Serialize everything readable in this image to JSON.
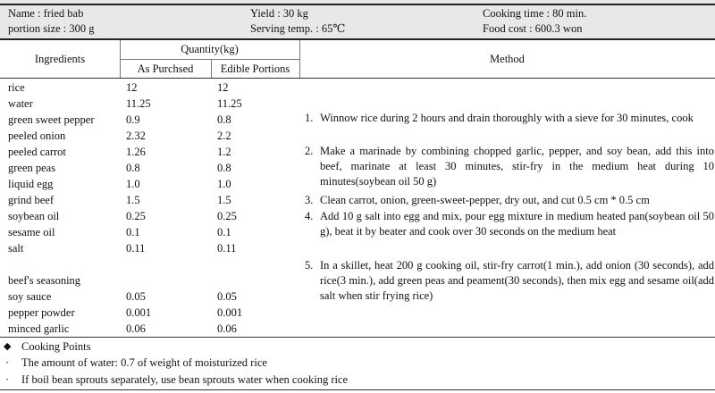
{
  "header": {
    "name": "Name : fried bab",
    "yield": "Yield : 30 kg",
    "cooking_time": "Cooking time : 80 min.",
    "portion_size": "portion size : 300 g",
    "serving_temp": "Serving temp. : 65℃",
    "food_cost": "Food cost : 600.3 won"
  },
  "table": {
    "col_ingredients": "Ingredients",
    "col_quantity": "Quantity(kg)",
    "col_as_purchased": "As Purchsed",
    "col_edible": "Edible Portions",
    "col_method": "Method"
  },
  "ingredients": [
    {
      "name": "rice",
      "ap": "12",
      "ep": "12"
    },
    {
      "name": "water",
      "ap": "11.25",
      "ep": "11.25"
    },
    {
      "name": "green sweet pepper",
      "ap": "0.9",
      "ep": "0.8"
    },
    {
      "name": "peeled onion",
      "ap": "2.32",
      "ep": "2.2"
    },
    {
      "name": "peeled carrot",
      "ap": "1.26",
      "ep": "1.2"
    },
    {
      "name": "green peas",
      "ap": "0.8",
      "ep": "0.8"
    },
    {
      "name": "liquid egg",
      "ap": "1.0",
      "ep": "1.0"
    },
    {
      "name": "grind beef",
      "ap": "1.5",
      "ep": "1.5"
    },
    {
      "name": "soybean oil",
      "ap": "0.25",
      "ep": "0.25"
    },
    {
      "name": "sesame oil",
      "ap": "0.1",
      "ep": "0.1"
    },
    {
      "name": "salt",
      "ap": "0.11",
      "ep": "0.11"
    }
  ],
  "seasoning_title": "beef's seasoning",
  "seasoning": [
    {
      "name": "soy sauce",
      "ap": "0.05",
      "ep": "0.05"
    },
    {
      "name": "pepper powder",
      "ap": "0.001",
      "ep": "0.001"
    },
    {
      "name": "minced garlic",
      "ap": "0.06",
      "ep": "0.06"
    }
  ],
  "method": [
    {
      "num": "1.",
      "text": "Winnow rice during 2 hours and drain thoroughly with a sieve for 30 minutes, cook"
    },
    {
      "num": "2.",
      "text": "Make a marinade by combining chopped garlic, pepper, and soy bean, add this into beef, marinate at least 30 minutes, stir-fry in the medium heat during 10 minutes(soybean oil 50 g)"
    },
    {
      "num": "3.",
      "text": "Clean carrot, onion, green-sweet-pepper, dry out, and cut 0.5 cm * 0.5 cm"
    },
    {
      "num": "4.",
      "text": "Add 10 g salt into egg and mix, pour egg mixture in medium heated pan(soybean oil 50 g), beat it by beater and cook over 30 seconds on the medium heat"
    },
    {
      "num": "5.",
      "text": "In a skillet, heat 200 g cooking oil, stir-fry carrot(1 min.), add onion (30 seconds), add rice(3 min.), add green peas and peament(30 seconds), then mix egg and sesame oil(add salt when stir frying rice)"
    }
  ],
  "cooking_points": {
    "marker": "◆",
    "title": "Cooking Points",
    "bullet": "·",
    "items": [
      "The amount of water: 0.7 of weight of moisturized rice",
      "If boil bean sprouts separately, use bean sprouts water when cooking rice"
    ]
  }
}
